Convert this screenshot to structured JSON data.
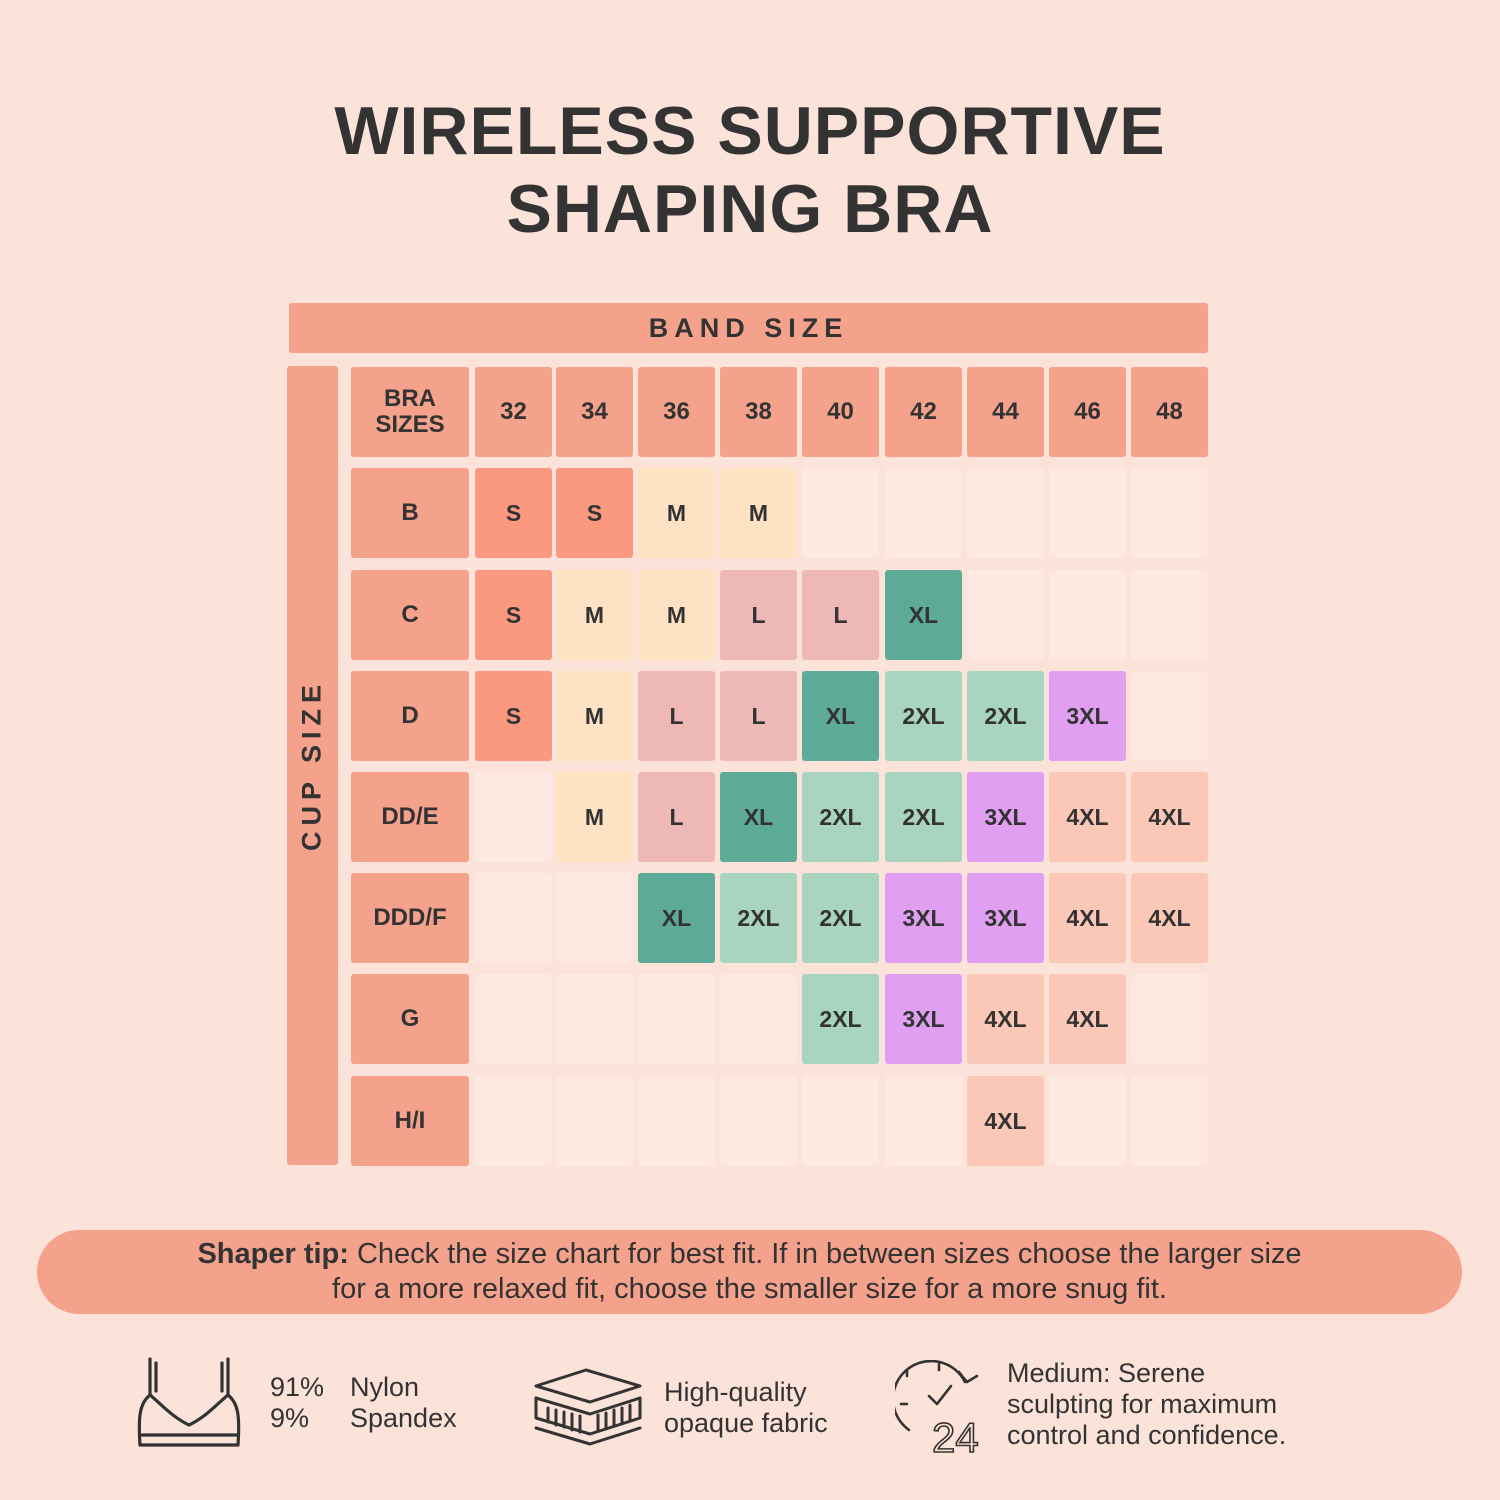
{
  "title": {
    "line1": "WIRELESS SUPPORTIVE",
    "line2": "SHAPING BRA"
  },
  "band_label": "BAND SIZE",
  "cup_label": "CUP SIZE",
  "corner_label": {
    "line1": "BRA",
    "line2": "SIZES"
  },
  "bands": [
    "32",
    "34",
    "36",
    "38",
    "40",
    "42",
    "44",
    "46",
    "48"
  ],
  "rows": [
    {
      "cup": "B",
      "sizes": [
        "S",
        "S",
        "M",
        "M",
        "",
        "",
        "",
        "",
        ""
      ]
    },
    {
      "cup": "C",
      "sizes": [
        "S",
        "M",
        "M",
        "L",
        "L",
        "XL",
        "",
        "",
        ""
      ]
    },
    {
      "cup": "D",
      "sizes": [
        "S",
        "M",
        "L",
        "L",
        "XL",
        "2XL",
        "2XL",
        "3XL",
        ""
      ]
    },
    {
      "cup": "DD/E",
      "sizes": [
        "",
        "M",
        "L",
        "XL",
        "2XL",
        "2XL",
        "3XL",
        "4XL",
        "4XL"
      ]
    },
    {
      "cup": "DDD/F",
      "sizes": [
        "",
        "",
        "XL",
        "2XL",
        "2XL",
        "3XL",
        "3XL",
        "4XL",
        "4XL"
      ]
    },
    {
      "cup": "G",
      "sizes": [
        "",
        "",
        "",
        "",
        "2XL",
        "3XL",
        "4XL",
        "4XL",
        ""
      ]
    },
    {
      "cup": "H/I",
      "sizes": [
        "",
        "",
        "",
        "",
        "",
        "",
        "4XL",
        "",
        ""
      ]
    }
  ],
  "size_colors": {
    "S": "#fb9880",
    "M": "#fde2c4",
    "L": "#eeb8b6",
    "XL": "#5dab97",
    "2XL": "#a9d4bf",
    "3XL": "#e09ff0",
    "4XL": "#fbc7b7",
    "empty": "#fde9e2"
  },
  "tip": {
    "label": "Shaper tip:",
    "line1": " Check the size chart for best fit. If in between sizes choose the larger size",
    "line2": "for a more relaxed fit, choose the smaller size for a more snug fit."
  },
  "features": {
    "material": {
      "pct1": "91%",
      "name1": "Nylon",
      "pct2": "9%",
      "name2": "Spandex",
      "icon": "bra-icon"
    },
    "fabric": {
      "line1": "High-quality",
      "line2": "opaque fabric",
      "icon": "fabric-layers-icon"
    },
    "compression": {
      "line1": "Medium: Serene",
      "line2": "sculpting for maximum",
      "line3": "control and confidence.",
      "icon": "24-hour-clock-icon",
      "icon_text": "24"
    }
  }
}
